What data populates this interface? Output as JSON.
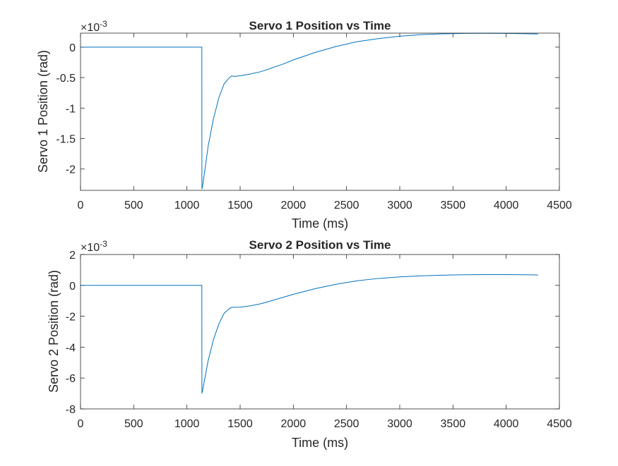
{
  "chart_data": [
    {
      "type": "line",
      "title": "Servo 1 Position vs Time",
      "xlabel": "Time (ms)",
      "ylabel": "Servo 1 Position (rad)",
      "exponent_label": "×10",
      "exponent_power": "-3",
      "xlim": [
        0,
        4500
      ],
      "ylim": [
        -2.35,
        0.23
      ],
      "x_ticks": [
        0,
        500,
        1000,
        1500,
        2000,
        2500,
        3000,
        3500,
        4000,
        4500
      ],
      "x_tick_labels": [
        "0",
        "500",
        "1000",
        "1500",
        "2000",
        "2500",
        "3000",
        "3500",
        "4000",
        "4500"
      ],
      "y_ticks": [
        0,
        -0.5,
        -1,
        -1.5,
        -2
      ],
      "y_tick_labels": [
        "0",
        "-0.5",
        "-1",
        "-1.5",
        "-2"
      ],
      "grid": false,
      "color": "#0072BD",
      "series": [
        {
          "x": [
            0,
            1140,
            1141,
            1150,
            1200,
            1250,
            1300,
            1350,
            1400,
            1420,
            1440,
            1500,
            1600,
            1700,
            1800,
            1900,
            2000,
            2200,
            2400,
            2600,
            2800,
            3000,
            3200,
            3400,
            3600,
            3800,
            4000,
            4200,
            4300
          ],
          "y": [
            0,
            0,
            -2.33,
            -2.25,
            -1.62,
            -1.17,
            -0.83,
            -0.6,
            -0.5,
            -0.47,
            -0.48,
            -0.47,
            -0.44,
            -0.4,
            -0.34,
            -0.28,
            -0.21,
            -0.09,
            0.01,
            0.09,
            0.14,
            0.18,
            0.205,
            0.218,
            0.225,
            0.227,
            0.225,
            0.22,
            0.215
          ]
        }
      ]
    },
    {
      "type": "line",
      "title": "Servo 2 Position vs Time",
      "xlabel": "Time (ms)",
      "ylabel": "Servo 2 Position (rad)",
      "exponent_label": "×10",
      "exponent_power": "-3",
      "xlim": [
        0,
        4500
      ],
      "ylim": [
        -8,
        2
      ],
      "x_ticks": [
        0,
        500,
        1000,
        1500,
        2000,
        2500,
        3000,
        3500,
        4000,
        4500
      ],
      "x_tick_labels": [
        "0",
        "500",
        "1000",
        "1500",
        "2000",
        "2500",
        "3000",
        "3500",
        "4000",
        "4500"
      ],
      "y_ticks": [
        2,
        0,
        -2,
        -4,
        -6,
        -8
      ],
      "y_tick_labels": [
        "2",
        "0",
        "-2",
        "-4",
        "-6",
        "-8"
      ],
      "grid": false,
      "color": "#0072BD",
      "series": [
        {
          "x": [
            0,
            1140,
            1141,
            1150,
            1200,
            1250,
            1300,
            1350,
            1400,
            1420,
            1440,
            1500,
            1600,
            1700,
            1800,
            1900,
            2000,
            2200,
            2400,
            2600,
            2800,
            3000,
            3200,
            3400,
            3600,
            3800,
            4000,
            4200,
            4300
          ],
          "y": [
            0,
            0,
            -7.0,
            -6.7,
            -4.85,
            -3.5,
            -2.5,
            -1.8,
            -1.5,
            -1.42,
            -1.42,
            -1.41,
            -1.32,
            -1.18,
            -0.98,
            -0.78,
            -0.58,
            -0.22,
            0.07,
            0.3,
            0.45,
            0.55,
            0.62,
            0.66,
            0.69,
            0.7,
            0.7,
            0.69,
            0.67
          ]
        }
      ]
    }
  ]
}
